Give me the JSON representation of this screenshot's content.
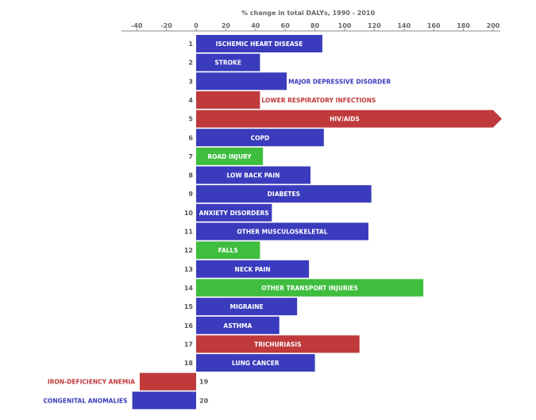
{
  "chart_data": {
    "type": "bar",
    "orientation": "horizontal",
    "xlabel": "% change in total DALYs, 1990 - 2010",
    "xlim": [
      -50,
      200
    ],
    "xticks": [
      -40,
      -20,
      0,
      20,
      40,
      60,
      80,
      100,
      120,
      140,
      160,
      180,
      200
    ],
    "grid": false,
    "colors": {
      "communicable": "#c0393b",
      "non_communicable": "#3b3bbd",
      "injuries": "#3ebd3e"
    },
    "bars": [
      {
        "rank": "1",
        "label": "ISCHEMIC HEART DISEASE",
        "value": 85,
        "group": "non_communicable"
      },
      {
        "rank": "2",
        "label": "STROKE",
        "value": 43,
        "group": "non_communicable"
      },
      {
        "rank": "3",
        "label": "MAJOR DEPRESSIVE DISORDER",
        "value": 61,
        "group": "non_communicable"
      },
      {
        "rank": "4",
        "label": "LOWER RESPIRATORY INFECTIONS",
        "value": 43,
        "group": "communicable"
      },
      {
        "rank": "5",
        "label": "HIV/AIDS",
        "value": 205,
        "group": "communicable",
        "truncated": true
      },
      {
        "rank": "6",
        "label": "COPD",
        "value": 86,
        "group": "non_communicable"
      },
      {
        "rank": "7",
        "label": "ROAD INJURY",
        "value": 45,
        "group": "injuries"
      },
      {
        "rank": "8",
        "label": "LOW BACK PAIN",
        "value": 77,
        "group": "non_communicable"
      },
      {
        "rank": "9",
        "label": "DIABETES",
        "value": 118,
        "group": "non_communicable"
      },
      {
        "rank": "10",
        "label": "ANXIETY DISORDERS",
        "value": 51,
        "group": "non_communicable"
      },
      {
        "rank": "11",
        "label": "OTHER MUSCULOSKELETAL",
        "value": 116,
        "group": "non_communicable"
      },
      {
        "rank": "12",
        "label": "FALLS",
        "value": 43,
        "group": "injuries"
      },
      {
        "rank": "13",
        "label": "NECK PAIN",
        "value": 76,
        "group": "non_communicable"
      },
      {
        "rank": "14",
        "label": "OTHER TRANSPORT INJURIES",
        "value": 153,
        "group": "injuries"
      },
      {
        "rank": "15",
        "label": "MIGRAINE",
        "value": 68,
        "group": "non_communicable"
      },
      {
        "rank": "16",
        "label": "ASTHMA",
        "value": 56,
        "group": "non_communicable"
      },
      {
        "rank": "17",
        "label": "TRICHURIASIS",
        "value": 110,
        "group": "communicable"
      },
      {
        "rank": "18",
        "label": "LUNG CANCER",
        "value": 80,
        "group": "non_communicable"
      },
      {
        "rank": "19",
        "label": "IRON-DEFICIENCY ANEMIA",
        "value": -38,
        "group": "communicable"
      },
      {
        "rank": "20",
        "label": "CONGENITAL ANOMALIES",
        "value": -43,
        "group": "non_communicable"
      }
    ]
  }
}
